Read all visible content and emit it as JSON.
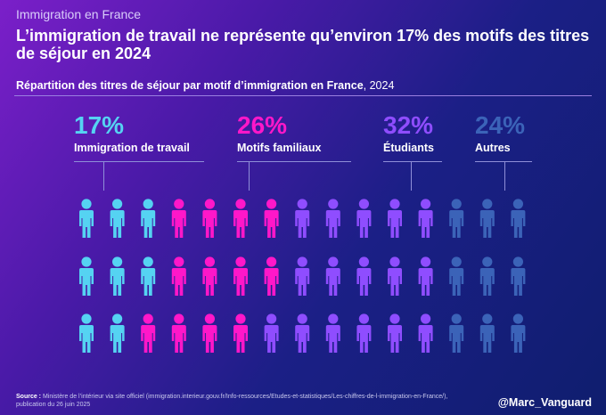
{
  "kicker": "Immigration en France",
  "headline": "L’immigration de travail ne représente qu’environ 17% des motifs des titres de séjour en 2024",
  "subtitle": {
    "main": "Répartition des titres de séjour par motif d’immigration en France",
    "year": ", 2024"
  },
  "source": {
    "label": "Source :",
    "text": " Ministère de l’intérieur via site officiel (immigration.interieur.gouv.fr/Info-ressources/Etudes-et-statistiques/Les-chiffres-de-l-immigration-en-France/), publication du 26 juin 2025"
  },
  "handle": "@Marc_Vanguard",
  "chart_data": {
    "type": "pictogram",
    "categories": [
      "Immigration de travail",
      "Motifs familiaux",
      "Étudiants",
      "Autres"
    ],
    "values": [
      17,
      26,
      32,
      24
    ],
    "value_labels": [
      "17%",
      "26%",
      "32%",
      "24%"
    ],
    "colors": [
      "#55d3f2",
      "#ff17c9",
      "#8f4dff",
      "#3b63b8"
    ],
    "grid": {
      "rows": 3,
      "cols": 15
    },
    "icon_counts_per_row": [
      [
        3,
        4,
        5,
        3
      ],
      [
        3,
        4,
        5,
        3
      ],
      [
        2,
        4,
        6,
        3
      ]
    ]
  }
}
